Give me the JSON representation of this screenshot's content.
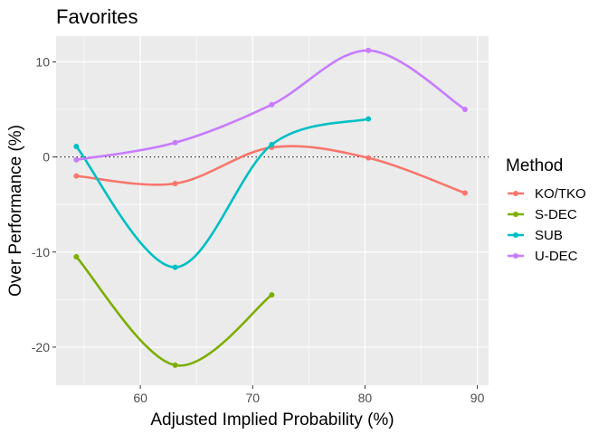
{
  "chart_data": {
    "type": "line",
    "title": "Favorites",
    "xlabel": "Adjusted Implied Probability (%)",
    "ylabel": "Over Performance (%)",
    "xlim": [
      52.5,
      91
    ],
    "ylim": [
      -24,
      12.7
    ],
    "xticks": [
      60,
      70,
      80,
      90
    ],
    "yticks": [
      -20,
      -10,
      0,
      10
    ],
    "ytick_labels": [
      "-20",
      "-10",
      "0",
      "10"
    ],
    "grid": true,
    "reference_line": {
      "y": 0,
      "style": "dotted"
    },
    "legend": {
      "title": "Method",
      "position": "right"
    },
    "series": [
      {
        "name": "KO/TKO",
        "color": "#F8766D",
        "x": [
          54.3,
          63.1,
          71.7,
          80.3,
          88.9
        ],
        "y": [
          -2.0,
          -2.8,
          1.0,
          -0.1,
          -3.8
        ]
      },
      {
        "name": "S-DEC",
        "color": "#7CAE00",
        "x": [
          54.3,
          63.1,
          71.7
        ],
        "y": [
          -10.5,
          -21.9,
          -14.5
        ]
      },
      {
        "name": "SUB",
        "color": "#00BFC4",
        "x": [
          54.3,
          63.1,
          71.7,
          80.3
        ],
        "y": [
          1.1,
          -11.6,
          1.3,
          4.0
        ]
      },
      {
        "name": "U-DEC",
        "color": "#C77CFF",
        "x": [
          54.3,
          63.1,
          71.7,
          80.3,
          88.9
        ],
        "y": [
          -0.3,
          1.5,
          5.5,
          11.2,
          5.0
        ]
      }
    ]
  }
}
